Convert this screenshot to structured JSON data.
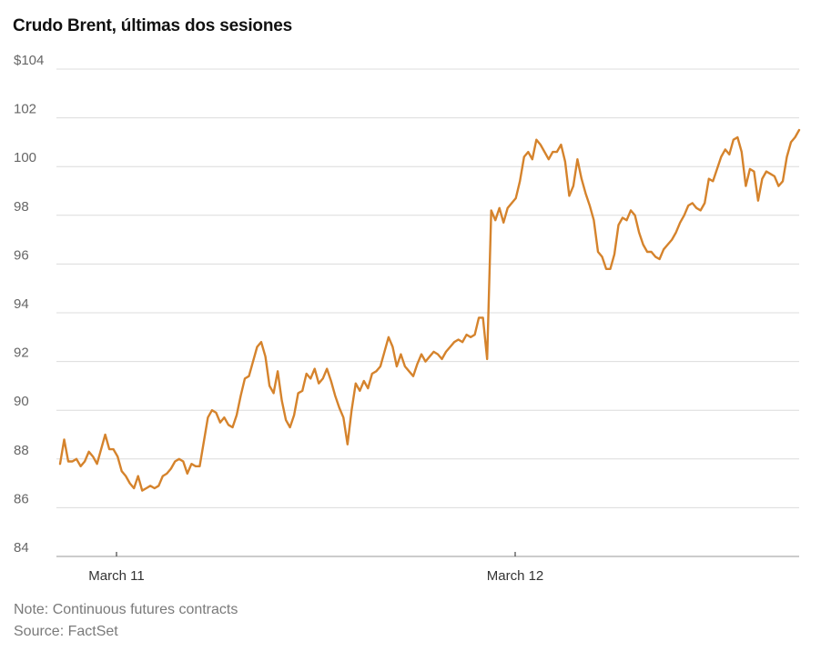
{
  "chart_data": {
    "type": "line",
    "title": "Crudo Brent, últimas dos sesiones",
    "y_tick_labels": [
      "$104",
      "102",
      "100",
      "98",
      "96",
      "94",
      "92",
      "90",
      "88",
      "86",
      "84"
    ],
    "y_tick_values": [
      104,
      102,
      100,
      98,
      96,
      94,
      92,
      90,
      88,
      86,
      84
    ],
    "ylim": [
      84,
      104
    ],
    "x_tick_labels": [
      "March 11",
      "March 12"
    ],
    "grid": true,
    "line_color": "#d5832c",
    "series": [
      {
        "values": [
          87.8,
          88.8,
          87.9,
          87.9,
          88.0,
          87.7,
          87.9,
          88.3,
          88.1,
          87.8,
          88.4,
          89.0,
          88.4,
          88.4,
          88.1,
          87.5,
          87.3,
          87.0,
          86.8,
          87.3,
          86.7,
          86.8,
          86.9,
          86.8,
          86.9,
          87.3,
          87.4,
          87.6,
          87.9,
          88.0,
          87.9,
          87.4,
          87.8,
          87.7,
          87.7,
          88.7,
          89.7,
          90.0,
          89.9,
          89.5,
          89.7,
          89.4,
          89.3,
          89.8,
          90.6,
          91.3,
          91.4,
          92.0,
          92.6,
          92.8,
          92.2,
          91.0,
          90.7,
          91.6,
          90.4,
          89.6,
          89.3,
          89.8,
          90.7,
          90.8,
          91.5,
          91.3,
          91.7,
          91.1,
          91.3,
          91.7,
          91.2,
          90.6,
          90.1,
          89.7,
          88.6,
          90.0,
          91.1,
          90.8,
          91.2,
          90.9,
          91.5,
          91.6,
          91.8,
          92.4,
          93.0,
          92.6,
          91.8,
          92.3,
          91.8,
          91.6,
          91.4,
          91.9,
          92.3,
          92.0,
          92.2,
          92.4,
          92.3,
          92.1,
          92.4,
          92.6,
          92.8,
          92.9,
          92.8,
          93.1,
          93.0,
          93.1,
          93.8,
          93.8,
          92.1,
          98.2,
          97.8,
          98.3,
          97.7,
          98.3,
          98.5,
          98.7,
          99.4,
          100.4,
          100.6,
          100.3,
          101.1,
          100.9,
          100.6,
          100.3,
          100.6,
          100.6,
          100.9,
          100.2,
          98.8,
          99.2,
          100.3,
          99.5,
          98.9,
          98.4,
          97.8,
          96.5,
          96.3,
          95.8,
          95.8,
          96.4,
          97.6,
          97.9,
          97.8,
          98.2,
          98.0,
          97.3,
          96.8,
          96.5,
          96.5,
          96.3,
          96.2,
          96.6,
          96.8,
          97.0,
          97.3,
          97.7,
          98.0,
          98.4,
          98.5,
          98.3,
          98.2,
          98.5,
          99.5,
          99.4,
          99.9,
          100.4,
          100.7,
          100.5,
          101.1,
          101.2,
          100.6,
          99.2,
          99.9,
          99.8,
          98.6,
          99.5,
          99.8,
          99.7,
          99.6,
          99.2,
          99.4,
          100.4,
          101.0,
          101.2,
          101.5
        ]
      }
    ]
  },
  "footer": {
    "note": "Note: Continuous futures contracts",
    "source": "Source: FactSet"
  }
}
